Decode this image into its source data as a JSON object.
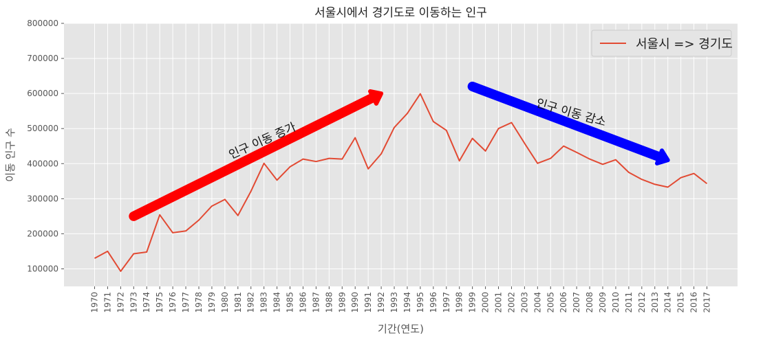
{
  "chart_data": {
    "type": "line",
    "title": "서울시에서 경기도로 이동하는 인구",
    "xlabel": "기간(연도)",
    "ylabel": "이동 인구 수",
    "ylim": [
      50000,
      800000
    ],
    "yticks": [
      100000,
      200000,
      300000,
      400000,
      500000,
      600000,
      700000,
      800000
    ],
    "grid": true,
    "legend_position": "top-right",
    "x": [
      "1970",
      "1971",
      "1972",
      "1973",
      "1974",
      "1975",
      "1976",
      "1977",
      "1978",
      "1979",
      "1980",
      "1981",
      "1982",
      "1983",
      "1984",
      "1985",
      "1986",
      "1987",
      "1988",
      "1989",
      "1990",
      "1991",
      "1992",
      "1993",
      "1994",
      "1995",
      "1996",
      "1997",
      "1998",
      "1999",
      "2000",
      "2001",
      "2002",
      "2003",
      "2004",
      "2005",
      "2006",
      "2007",
      "2008",
      "2009",
      "2010",
      "2011",
      "2012",
      "2013",
      "2014",
      "2015",
      "2016",
      "2017"
    ],
    "series": [
      {
        "name": "서울시 => 경기도",
        "color": "#e24a33",
        "values": [
          130000,
          150000,
          93000,
          143000,
          148000,
          254000,
          203000,
          208000,
          239000,
          279000,
          298000,
          252000,
          321000,
          401000,
          353000,
          391000,
          413000,
          406000,
          415000,
          413000,
          474000,
          385000,
          428000,
          503000,
          543000,
          599000,
          520000,
          495000,
          408000,
          472000,
          436000,
          500000,
          517000,
          458000,
          401000,
          415000,
          450000,
          432000,
          413000,
          398000,
          411000,
          375000,
          355000,
          341000,
          333000,
          360000,
          372000,
          343000
        ]
      }
    ],
    "annotations": [
      {
        "type": "arrow",
        "from": [
          "1973",
          250000
        ],
        "to": [
          "1992",
          600000
        ],
        "color": "#ff0000"
      },
      {
        "type": "arrow",
        "from": [
          "1999",
          620000
        ],
        "to": [
          "2014",
          410000
        ],
        "color": "#0000ff"
      },
      {
        "type": "text",
        "text": "인구 이동 증가",
        "at": [
          "1983",
          455000
        ],
        "rotation": 24
      },
      {
        "type": "text",
        "text": "인구 이동 감소",
        "at": [
          "2006.5",
          535000
        ],
        "rotation": -16
      }
    ]
  }
}
